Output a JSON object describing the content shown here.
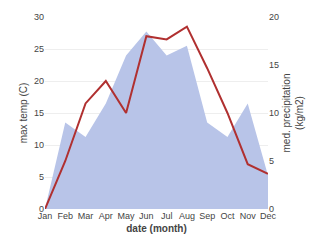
{
  "chart_data": {
    "type": "line",
    "categories": [
      "Jan",
      "Feb",
      "Mar",
      "Apr",
      "May",
      "Jun",
      "Jul",
      "Aug",
      "Sep",
      "Oct",
      "Nov",
      "Dec"
    ],
    "series": [
      {
        "type": "area",
        "color": "#b8c4e8",
        "axis": "y2",
        "values": [
          0,
          9,
          7.5,
          11,
          16,
          18.5,
          16,
          17,
          9,
          7.5,
          11,
          3.5
        ]
      },
      {
        "type": "line",
        "color": "#b03030",
        "values": [
          0,
          7.5,
          16.5,
          20,
          15,
          27,
          26.5,
          28.5,
          22,
          15,
          7,
          5.5
        ]
      }
    ],
    "xlabel": "date (month)",
    "ylabel": "max temp (C)",
    "y2label": "med. precipitation\n(kg/m2)",
    "ylim": [
      0,
      30
    ],
    "yticks": [
      0,
      5,
      10,
      15,
      20,
      25,
      30
    ],
    "y2lim": [
      0,
      20
    ],
    "y2ticks": [
      0,
      5,
      10,
      15,
      20
    ],
    "grid": true
  }
}
